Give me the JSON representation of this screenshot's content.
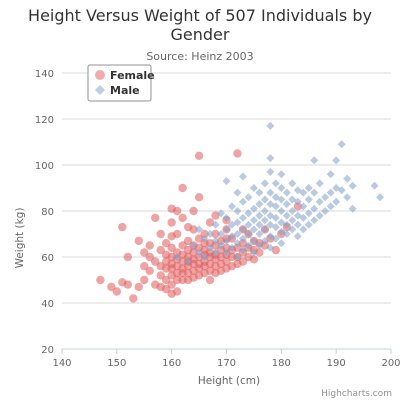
{
  "chart_data": {
    "type": "scatter",
    "title_line1": "Height Versus Weight of 507 Individuals by",
    "title_line2": "Gender",
    "subtitle": "Source: Heinz 2003",
    "xlabel": "Height (cm)",
    "ylabel": "Weight (kg)",
    "xlim": [
      140,
      200
    ],
    "ylim": [
      20,
      140
    ],
    "x_ticks": [
      "140",
      "150",
      "160",
      "170",
      "180",
      "190",
      "200"
    ],
    "y_ticks": [
      "20",
      "40",
      "60",
      "80",
      "100",
      "120",
      "140"
    ],
    "grid": "horizontal",
    "legend_position": "top-left",
    "credits": "Highcharts.com",
    "colors": {
      "female": "#e05a5a",
      "male": "#7f9fc8"
    },
    "series": [
      {
        "name": "Female",
        "marker": "circle",
        "points": [
          [
            147,
            50
          ],
          [
            149,
            47
          ],
          [
            150,
            45
          ],
          [
            151,
            49
          ],
          [
            151,
            73
          ],
          [
            152,
            48
          ],
          [
            152,
            60
          ],
          [
            153,
            42
          ],
          [
            154,
            67
          ],
          [
            154,
            47
          ],
          [
            155,
            50
          ],
          [
            155,
            56
          ],
          [
            155,
            62
          ],
          [
            156,
            54
          ],
          [
            156,
            60
          ],
          [
            156,
            65
          ],
          [
            157,
            48
          ],
          [
            157,
            58
          ],
          [
            157,
            77
          ],
          [
            158,
            47
          ],
          [
            158,
            52
          ],
          [
            158,
            56
          ],
          [
            158,
            63
          ],
          [
            158,
            70
          ],
          [
            159,
            46
          ],
          [
            159,
            50
          ],
          [
            159,
            55
          ],
          [
            159,
            58
          ],
          [
            159,
            61
          ],
          [
            159,
            66
          ],
          [
            160,
            44
          ],
          [
            160,
            48
          ],
          [
            160,
            52
          ],
          [
            160,
            55
          ],
          [
            160,
            57
          ],
          [
            160,
            60
          ],
          [
            160,
            64
          ],
          [
            160,
            69
          ],
          [
            160,
            75
          ],
          [
            160,
            81
          ],
          [
            161,
            45
          ],
          [
            161,
            50
          ],
          [
            161,
            53
          ],
          [
            161,
            56
          ],
          [
            161,
            59
          ],
          [
            161,
            62
          ],
          [
            161,
            70
          ],
          [
            161,
            80
          ],
          [
            162,
            50
          ],
          [
            162,
            53
          ],
          [
            162,
            55
          ],
          [
            162,
            58
          ],
          [
            162,
            61
          ],
          [
            162,
            65
          ],
          [
            162,
            77
          ],
          [
            162,
            90
          ],
          [
            163,
            50
          ],
          [
            163,
            53
          ],
          [
            163,
            56
          ],
          [
            163,
            58
          ],
          [
            163,
            60
          ],
          [
            163,
            63
          ],
          [
            163,
            67
          ],
          [
            163,
            73
          ],
          [
            164,
            51
          ],
          [
            164,
            54
          ],
          [
            164,
            57
          ],
          [
            164,
            59
          ],
          [
            164,
            62
          ],
          [
            164,
            65
          ],
          [
            164,
            72
          ],
          [
            164,
            80
          ],
          [
            165,
            52
          ],
          [
            165,
            55
          ],
          [
            165,
            57
          ],
          [
            165,
            60
          ],
          [
            165,
            64
          ],
          [
            165,
            68
          ],
          [
            165,
            104
          ],
          [
            165,
            86
          ],
          [
            166,
            53
          ],
          [
            166,
            56
          ],
          [
            166,
            58
          ],
          [
            166,
            61
          ],
          [
            166,
            63
          ],
          [
            166,
            66
          ],
          [
            166,
            70
          ],
          [
            167,
            50
          ],
          [
            167,
            54
          ],
          [
            167,
            57
          ],
          [
            167,
            60
          ],
          [
            167,
            62
          ],
          [
            167,
            66
          ],
          [
            167,
            75
          ],
          [
            168,
            53
          ],
          [
            168,
            56
          ],
          [
            168,
            59
          ],
          [
            168,
            61
          ],
          [
            168,
            65
          ],
          [
            168,
            70
          ],
          [
            168,
            78
          ],
          [
            169,
            54
          ],
          [
            169,
            57
          ],
          [
            169,
            60
          ],
          [
            169,
            63
          ],
          [
            169,
            67
          ],
          [
            170,
            55
          ],
          [
            170,
            58
          ],
          [
            170,
            61
          ],
          [
            170,
            64
          ],
          [
            170,
            68
          ],
          [
            170,
            72
          ],
          [
            170,
            76
          ],
          [
            171,
            56
          ],
          [
            171,
            60
          ],
          [
            171,
            63
          ],
          [
            171,
            68
          ],
          [
            172,
            57
          ],
          [
            172,
            60
          ],
          [
            172,
            64
          ],
          [
            172,
            105
          ],
          [
            173,
            58
          ],
          [
            173,
            62
          ],
          [
            173,
            66
          ],
          [
            173,
            72
          ],
          [
            174,
            60
          ],
          [
            174,
            64
          ],
          [
            174,
            70
          ],
          [
            175,
            59
          ],
          [
            175,
            63
          ],
          [
            175,
            67
          ],
          [
            176,
            62
          ],
          [
            176,
            66
          ],
          [
            177,
            65
          ],
          [
            177,
            72
          ],
          [
            178,
            68
          ],
          [
            179,
            63
          ],
          [
            180,
            70
          ],
          [
            181,
            73
          ],
          [
            183,
            82
          ]
        ]
      },
      {
        "name": "Male",
        "marker": "diamond",
        "points": [
          [
            161,
            60
          ],
          [
            163,
            58
          ],
          [
            164,
            65
          ],
          [
            165,
            62
          ],
          [
            165,
            72
          ],
          [
            166,
            60
          ],
          [
            166,
            68
          ],
          [
            167,
            64
          ],
          [
            167,
            70
          ],
          [
            168,
            62
          ],
          [
            168,
            67
          ],
          [
            168,
            74
          ],
          [
            169,
            65
          ],
          [
            169,
            70
          ],
          [
            169,
            79
          ],
          [
            170,
            62
          ],
          [
            170,
            67
          ],
          [
            170,
            72
          ],
          [
            170,
            77
          ],
          [
            170,
            93
          ],
          [
            171,
            64
          ],
          [
            171,
            69
          ],
          [
            171,
            74
          ],
          [
            171,
            82
          ],
          [
            172,
            60
          ],
          [
            172,
            66
          ],
          [
            172,
            70
          ],
          [
            172,
            75
          ],
          [
            172,
            80
          ],
          [
            172,
            88
          ],
          [
            173,
            63
          ],
          [
            173,
            68
          ],
          [
            173,
            72
          ],
          [
            173,
            77
          ],
          [
            173,
            84
          ],
          [
            173,
            95
          ],
          [
            174,
            65
          ],
          [
            174,
            70
          ],
          [
            174,
            74
          ],
          [
            174,
            79
          ],
          [
            174,
            86
          ],
          [
            175,
            62
          ],
          [
            175,
            67
          ],
          [
            175,
            72
          ],
          [
            175,
            76
          ],
          [
            175,
            81
          ],
          [
            175,
            90
          ],
          [
            176,
            65
          ],
          [
            176,
            70
          ],
          [
            176,
            74
          ],
          [
            176,
            78
          ],
          [
            176,
            83
          ],
          [
            176,
            88
          ],
          [
            177,
            67
          ],
          [
            177,
            72
          ],
          [
            177,
            76
          ],
          [
            177,
            80
          ],
          [
            177,
            85
          ],
          [
            177,
            92
          ],
          [
            178,
            64
          ],
          [
            178,
            69
          ],
          [
            178,
            74
          ],
          [
            178,
            78
          ],
          [
            178,
            83
          ],
          [
            178,
            88
          ],
          [
            178,
            97
          ],
          [
            178,
            103
          ],
          [
            178,
            117
          ],
          [
            179,
            68
          ],
          [
            179,
            73
          ],
          [
            179,
            77
          ],
          [
            179,
            82
          ],
          [
            179,
            86
          ],
          [
            179,
            92
          ],
          [
            180,
            66
          ],
          [
            180,
            71
          ],
          [
            180,
            75
          ],
          [
            180,
            80
          ],
          [
            180,
            85
          ],
          [
            180,
            90
          ],
          [
            180,
            96
          ],
          [
            181,
            70
          ],
          [
            181,
            74
          ],
          [
            181,
            78
          ],
          [
            181,
            83
          ],
          [
            181,
            88
          ],
          [
            182,
            72
          ],
          [
            182,
            76
          ],
          [
            182,
            80
          ],
          [
            182,
            85
          ],
          [
            182,
            92
          ],
          [
            183,
            69
          ],
          [
            183,
            74
          ],
          [
            183,
            78
          ],
          [
            183,
            84
          ],
          [
            183,
            89
          ],
          [
            184,
            72
          ],
          [
            184,
            77
          ],
          [
            184,
            82
          ],
          [
            184,
            88
          ],
          [
            185,
            74
          ],
          [
            185,
            79
          ],
          [
            185,
            85
          ],
          [
            185,
            90
          ],
          [
            186,
            76
          ],
          [
            186,
            81
          ],
          [
            186,
            88
          ],
          [
            186,
            102
          ],
          [
            187,
            78
          ],
          [
            187,
            84
          ],
          [
            187,
            92
          ],
          [
            188,
            80
          ],
          [
            188,
            86
          ],
          [
            189,
            82
          ],
          [
            189,
            88
          ],
          [
            189,
            96
          ],
          [
            190,
            84
          ],
          [
            190,
            90
          ],
          [
            190,
            102
          ],
          [
            191,
            89
          ],
          [
            191,
            109
          ],
          [
            192,
            86
          ],
          [
            192,
            94
          ],
          [
            193,
            91
          ],
          [
            193,
            81
          ],
          [
            197,
            91
          ],
          [
            198,
            86
          ]
        ]
      }
    ]
  }
}
